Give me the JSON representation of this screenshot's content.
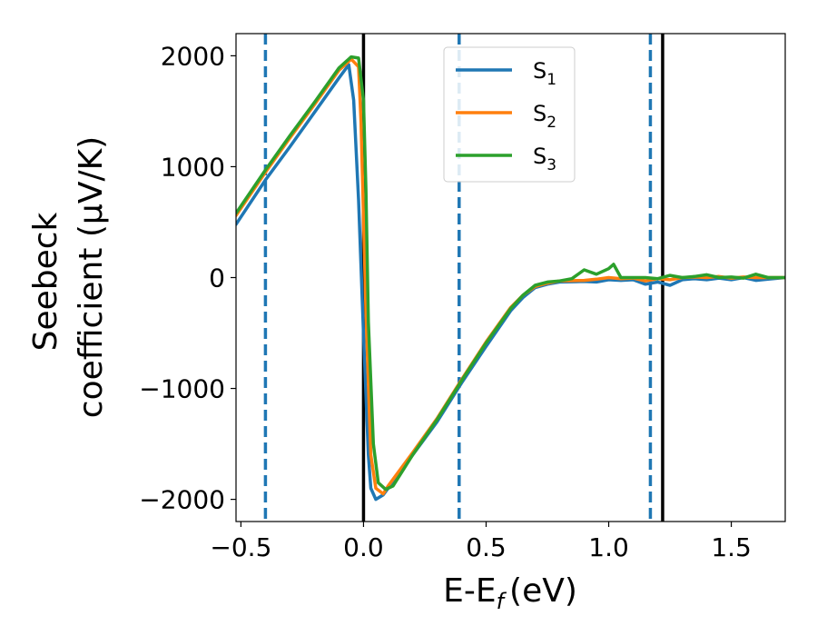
{
  "chart_data": {
    "type": "line",
    "xlabel": "E-E",
    "xlabel_sub": "f",
    "xlabel_unit": "(eV)",
    "ylabel_line1": "Seebeck",
    "ylabel_line2": "coefficient  (μV/K)",
    "xlim": [
      -0.52,
      1.72
    ],
    "ylim": [
      -2200,
      2200
    ],
    "xticks": [
      -0.5,
      0.0,
      0.5,
      1.0,
      1.5
    ],
    "xtick_labels": [
      "−0.5",
      "0.0",
      "0.5",
      "1.0",
      "1.5"
    ],
    "yticks": [
      -2000,
      -1000,
      0,
      1000,
      2000
    ],
    "ytick_labels": [
      "−2000",
      "−1000",
      "0",
      "1000",
      "2000"
    ],
    "grid": false,
    "legend_position": "top-center",
    "vlines_solid": [
      0.0,
      1.22
    ],
    "vlines_dashed": [
      -0.4,
      0.39,
      1.17
    ],
    "vline_solid_color": "#000000",
    "vline_dashed_color": "#1f77b4",
    "series": [
      {
        "name": "S",
        "subscript": "1",
        "color": "#1f77b4",
        "x": [
          -0.52,
          -0.4,
          -0.3,
          -0.2,
          -0.1,
          -0.06,
          -0.04,
          -0.02,
          0.0,
          0.02,
          0.03,
          0.05,
          0.08,
          0.1,
          0.2,
          0.3,
          0.4,
          0.5,
          0.6,
          0.65,
          0.7,
          0.75,
          0.8,
          0.9,
          0.95,
          1.0,
          1.05,
          1.1,
          1.15,
          1.2,
          1.25,
          1.3,
          1.35,
          1.4,
          1.45,
          1.5,
          1.55,
          1.6,
          1.65,
          1.72
        ],
        "y": [
          480,
          880,
          1180,
          1490,
          1800,
          1920,
          1600,
          700,
          -500,
          -1600,
          -1900,
          -2000,
          -1960,
          -1900,
          -1600,
          -1300,
          -950,
          -620,
          -300,
          -180,
          -90,
          -60,
          -40,
          -35,
          -40,
          -20,
          -25,
          -20,
          -60,
          -40,
          -70,
          -20,
          -10,
          -20,
          -5,
          -20,
          0,
          -25,
          -15,
          0
        ]
      },
      {
        "name": "S",
        "subscript": "2",
        "color": "#ff7f0e",
        "x": [
          -0.52,
          -0.4,
          -0.3,
          -0.2,
          -0.1,
          -0.05,
          -0.02,
          -0.01,
          0.01,
          0.03,
          0.05,
          0.08,
          0.1,
          0.2,
          0.3,
          0.4,
          0.5,
          0.6,
          0.65,
          0.7,
          0.75,
          0.8,
          0.9,
          0.95,
          1.0,
          1.05,
          1.1,
          1.15,
          1.2,
          1.25,
          1.3,
          1.35,
          1.4,
          1.45,
          1.5,
          1.55,
          1.6,
          1.65,
          1.72
        ],
        "y": [
          560,
          950,
          1260,
          1560,
          1870,
          1970,
          1900,
          1400,
          -300,
          -1600,
          -1900,
          -1950,
          -1880,
          -1580,
          -1270,
          -920,
          -580,
          -270,
          -160,
          -80,
          -50,
          -30,
          -25,
          -15,
          0,
          -10,
          -5,
          -30,
          -10,
          -20,
          0,
          5,
          0,
          10,
          -5,
          5,
          0,
          0,
          0
        ]
      },
      {
        "name": "S",
        "subscript": "3",
        "color": "#2ca02c",
        "x": [
          -0.52,
          -0.4,
          -0.3,
          -0.2,
          -0.1,
          -0.05,
          -0.02,
          0.0,
          0.01,
          0.02,
          0.04,
          0.06,
          0.09,
          0.12,
          0.2,
          0.3,
          0.4,
          0.5,
          0.6,
          0.65,
          0.7,
          0.75,
          0.8,
          0.85,
          0.9,
          0.95,
          1.0,
          1.02,
          1.05,
          1.1,
          1.15,
          1.2,
          1.25,
          1.3,
          1.35,
          1.4,
          1.45,
          1.5,
          1.55,
          1.6,
          1.65,
          1.72
        ],
        "y": [
          580,
          970,
          1280,
          1580,
          1890,
          1990,
          1980,
          1600,
          800,
          -400,
          -1500,
          -1850,
          -1910,
          -1880,
          -1600,
          -1280,
          -930,
          -590,
          -280,
          -160,
          -70,
          -40,
          -30,
          -10,
          70,
          30,
          80,
          120,
          0,
          0,
          0,
          -10,
          20,
          0,
          10,
          25,
          0,
          5,
          -5,
          30,
          0,
          0
        ]
      }
    ]
  }
}
